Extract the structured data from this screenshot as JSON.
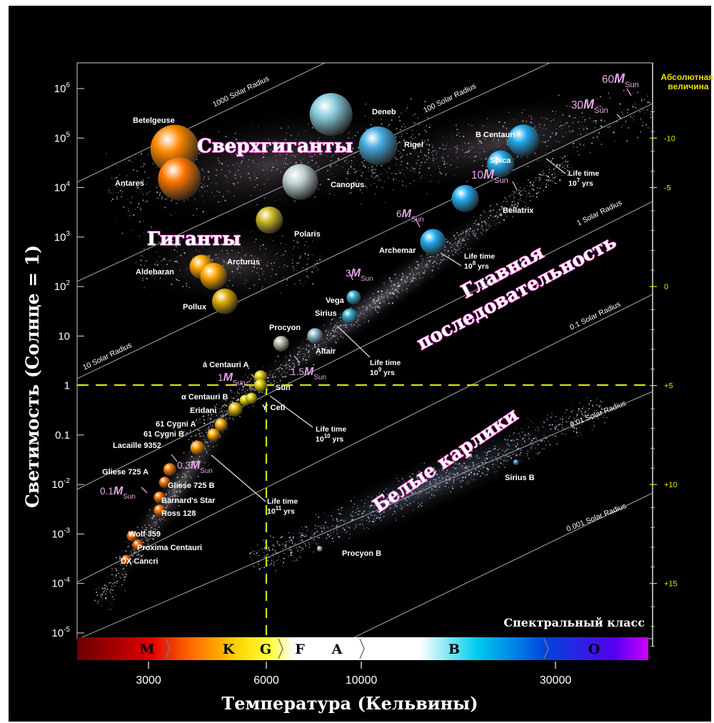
{
  "title": {
    "y_axis": "Светимость (Солнце = 1)",
    "x_axis": "Температура (Кельвины)",
    "right_axis": "Абсолютная величина",
    "spectral_title": "Спектральный класс"
  },
  "colors": {
    "background": "#000000",
    "frame": "#ffffff",
    "region_label": "#ff66dd",
    "region_label_fill": "#ffffff",
    "mass_label": "#e6a6e6",
    "guide_line": "#d8e000",
    "magnitude_text": "#f0e000"
  },
  "y_ticks": [
    {
      "label": "10",
      "sup": "6",
      "value": 1000000
    },
    {
      "label": "10",
      "sup": "5",
      "value": 100000
    },
    {
      "label": "10",
      "sup": "4",
      "value": 10000
    },
    {
      "label": "10",
      "sup": "3",
      "value": 1000
    },
    {
      "label": "10",
      "sup": "2",
      "value": 100
    },
    {
      "label": "10",
      "sup": "",
      "value": 10
    },
    {
      "label": "1",
      "sup": "",
      "value": 1
    },
    {
      "label": "0.1",
      "sup": "",
      "value": 0.1
    },
    {
      "label": "10",
      "sup": "-2",
      "value": 0.01
    },
    {
      "label": "10",
      "sup": "-3",
      "value": 0.001
    },
    {
      "label": "10",
      "sup": "-4",
      "value": 0.0001
    },
    {
      "label": "10",
      "sup": "-5",
      "value": 1e-05
    }
  ],
  "x_ticks": [
    {
      "label": "3000",
      "value": 3000
    },
    {
      "label": "6000",
      "value": 6000
    },
    {
      "label": "10000",
      "value": 10000
    },
    {
      "label": "30000",
      "value": 30000
    }
  ],
  "magnitude_ticks": [
    {
      "label": "-10",
      "luminosity": 100000
    },
    {
      "label": "-5",
      "luminosity": 10000
    },
    {
      "label": "0",
      "luminosity": 100
    },
    {
      "label": "+5",
      "luminosity": 1
    },
    {
      "label": "+10",
      "luminosity": 0.01
    },
    {
      "label": "+15",
      "luminosity": 0.0001
    }
  ],
  "spectral_classes": [
    {
      "label": "M",
      "color": "#cc0000"
    },
    {
      "label": "K",
      "color": "#ffaa00"
    },
    {
      "label": "G",
      "color": "#ffee00"
    },
    {
      "label": "F",
      "color": "#ffffff"
    },
    {
      "label": "A",
      "color": "#ffffff"
    },
    {
      "label": "B",
      "color": "#00aadd"
    },
    {
      "label": "O",
      "color": "#aa00ff"
    }
  ],
  "radius_lines": [
    {
      "label": "1000 Solar Radius"
    },
    {
      "label": "100  Solar Radius"
    },
    {
      "label": "10  Solar Radius"
    },
    {
      "label": "1  Solar Radius"
    },
    {
      "label": "0.1  Solar Radius"
    },
    {
      "label": "0.01  Solar Radius"
    },
    {
      "label": "0.001  Solar Radius"
    }
  ],
  "regions": [
    {
      "label": "Сверхгиганты"
    },
    {
      "label": "Гиганты"
    },
    {
      "label": "Главная"
    },
    {
      "label": "последовательность"
    },
    {
      "label": "Белые карлики"
    }
  ],
  "stars": [
    {
      "name": "Betelgeuse",
      "temperature": 3500,
      "luminosity": 60000,
      "color": "#ff8800"
    },
    {
      "name": "Antares",
      "temperature": 3600,
      "luminosity": 15000,
      "color": "#ff7700"
    },
    {
      "name": "Deneb",
      "temperature": 8500,
      "luminosity": 300000,
      "color": "#88ccdd"
    },
    {
      "name": "Rigel",
      "temperature": 11000,
      "luminosity": 70000,
      "color": "#44aadd"
    },
    {
      "name": "Canopus",
      "temperature": 7200,
      "luminosity": 13000,
      "color": "#c0d0d0"
    },
    {
      "name": "Polaris",
      "temperature": 6100,
      "luminosity": 2200,
      "color": "#ccbb22"
    },
    {
      "name": "Aldebaran",
      "temperature": 4100,
      "luminosity": 250,
      "color": "#ffaa00"
    },
    {
      "name": "Arcturus",
      "temperature": 4400,
      "luminosity": 160,
      "color": "#ffaa00"
    },
    {
      "name": "Pollux",
      "temperature": 4700,
      "luminosity": 50,
      "color": "#ddaa00"
    },
    {
      "name": "B Centauri",
      "temperature": 25000,
      "luminosity": 90000,
      "color": "#22aaee"
    },
    {
      "name": "Spica",
      "temperature": 22000,
      "luminosity": 30000,
      "color": "#22aaee"
    },
    {
      "name": "Bellatrix",
      "temperature": 18000,
      "luminosity": 6000,
      "color": "#22aaee"
    },
    {
      "name": "Archemar",
      "temperature": 15000,
      "luminosity": 800,
      "color": "#22aaee"
    },
    {
      "name": "Vega",
      "temperature": 9600,
      "luminosity": 60,
      "color": "#33aacc"
    },
    {
      "name": "Sirius",
      "temperature": 9400,
      "luminosity": 25,
      "color": "#33aacc"
    },
    {
      "name": "Procyon",
      "temperature": 6500,
      "luminosity": 7,
      "color": "#bbbbaa"
    },
    {
      "name": "Altair",
      "temperature": 7800,
      "luminosity": 10,
      "color": "#88bbcc"
    },
    {
      "name": "á Centauri A",
      "temperature": 5800,
      "luminosity": 1.5,
      "color": "#ddcc00"
    },
    {
      "name": "Sun",
      "temperature": 5800,
      "luminosity": 1,
      "color": "#ddcc00"
    },
    {
      "name": "α Centauri B",
      "temperature": 5300,
      "luminosity": 0.5,
      "color": "#ddcc00"
    },
    {
      "name": "ϒ Ceti",
      "temperature": 5500,
      "luminosity": 0.55,
      "color": "#ddcc00"
    },
    {
      "name": "Eridani",
      "temperature": 5000,
      "luminosity": 0.33,
      "color": "#ddbb00"
    },
    {
      "name": "61 Cygni A",
      "temperature": 4600,
      "luminosity": 0.16,
      "color": "#ffaa00"
    },
    {
      "name": "61 Cygni B",
      "temperature": 4400,
      "luminosity": 0.1,
      "color": "#ffaa00"
    },
    {
      "name": "Lacaille 9352",
      "temperature": 4000,
      "luminosity": 0.055,
      "color": "#ff9900"
    },
    {
      "name": "Gliese 725 A",
      "temperature": 3400,
      "luminosity": 0.02,
      "color": "#ff7700"
    },
    {
      "name": "Gliese 725 B",
      "temperature": 3300,
      "luminosity": 0.011,
      "color": "#ff7700"
    },
    {
      "name": "Barnard's Star",
      "temperature": 3200,
      "luminosity": 0.0055,
      "color": "#ff7700"
    },
    {
      "name": "Ross 128",
      "temperature": 3200,
      "luminosity": 0.003,
      "color": "#ff7700"
    },
    {
      "name": "Wolf 359",
      "temperature": 2700,
      "luminosity": 0.0009,
      "color": "#ff6600"
    },
    {
      "name": "Proxima Centauri",
      "temperature": 2800,
      "luminosity": 0.0006,
      "color": "#ff6600"
    },
    {
      "name": "DX Cancri",
      "temperature": 2600,
      "luminosity": 0.0003,
      "color": "#ff5500"
    },
    {
      "name": "Sirius B",
      "temperature": 24000,
      "luminosity": 0.028,
      "color": "#3399cc"
    },
    {
      "name": "Procyon B",
      "temperature": 8000,
      "luminosity": 0.0005,
      "color": "#88bbcc"
    }
  ],
  "mass_labels": [
    {
      "mass": "60",
      "unit": "M",
      "sub": "Sun"
    },
    {
      "mass": "30",
      "unit": "M",
      "sub": "Sun"
    },
    {
      "mass": "10",
      "unit": "M",
      "sub": "Sun"
    },
    {
      "mass": "6",
      "unit": "M",
      "sub": "Sun"
    },
    {
      "mass": "3",
      "unit": "M",
      "sub": "Sun"
    },
    {
      "mass": "1.5",
      "unit": "M",
      "sub": "Sun"
    },
    {
      "mass": "1",
      "unit": "M",
      "sub": "Sun"
    },
    {
      "mass": "0.3",
      "unit": "M",
      "sub": "Sun"
    },
    {
      "mass": "0.1",
      "unit": "M",
      "sub": "Sun"
    }
  ],
  "lifetimes": [
    {
      "line1": "Life time",
      "base": "10",
      "exp": "7",
      "unit": " yrs"
    },
    {
      "line1": "Life time",
      "base": "10",
      "exp": "8",
      "unit": " yrs"
    },
    {
      "line1": "Life time",
      "base": "10",
      "exp": "9",
      "unit": " yrs"
    },
    {
      "line1": "Life time",
      "base": "10",
      "exp": "10",
      "unit": " yrs"
    },
    {
      "line1": "Life time",
      "base": "10",
      "exp": "11",
      "unit": " yrs"
    }
  ]
}
